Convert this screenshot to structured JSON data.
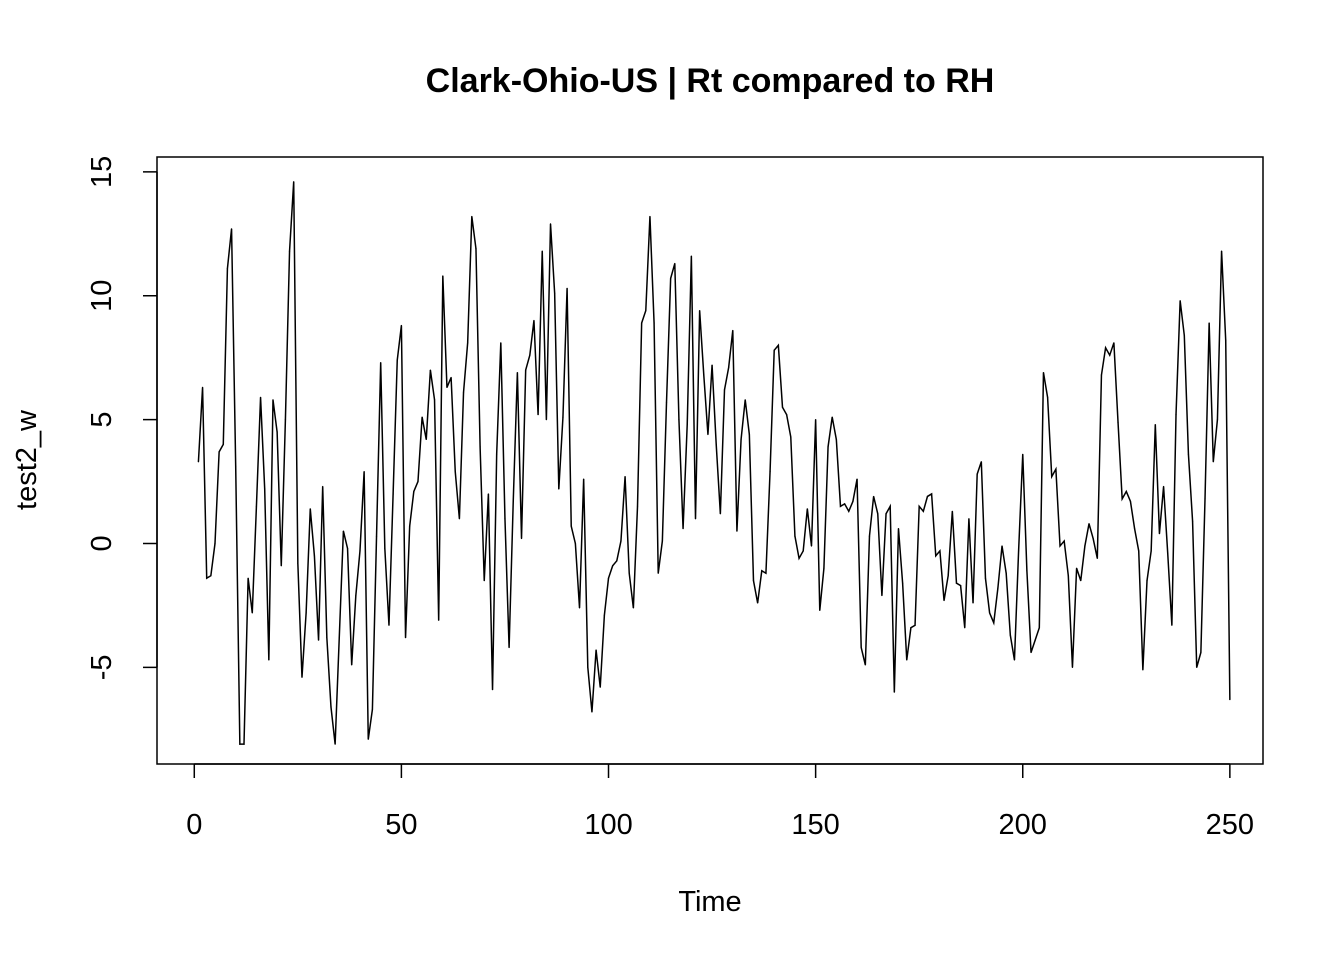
{
  "chart_data": {
    "type": "line",
    "title": "Clark-Ohio-US | Rt compared to RH",
    "xlabel": "Time",
    "ylabel": "test2_w",
    "xlim": [
      -9,
      258
    ],
    "ylim": [
      -8.9,
      15.6
    ],
    "x_ticks": [
      0,
      50,
      100,
      150,
      200,
      250
    ],
    "x_tick_labels": [
      "0",
      "50",
      "100",
      "150",
      "200",
      "250"
    ],
    "y_ticks": [
      -5,
      0,
      5,
      10,
      15
    ],
    "y_tick_labels": [
      "-5",
      "0",
      "5",
      "10",
      "15"
    ],
    "grid": false,
    "legend": "none",
    "line_color": "#000000",
    "series": [
      {
        "x_start": 1,
        "x_step": 1,
        "values": [
          3.3,
          6.3,
          -1.4,
          -1.3,
          0.0,
          3.7,
          4.0,
          11.1,
          12.7,
          3.1,
          -8.1,
          -8.1,
          -1.4,
          -2.8,
          1.5,
          5.9,
          2.2,
          -4.7,
          5.8,
          4.5,
          -0.9,
          5.0,
          11.8,
          14.6,
          -0.8,
          -5.4,
          -2.8,
          1.4,
          -0.5,
          -3.9,
          2.3,
          -3.8,
          -6.6,
          -8.1,
          -3.8,
          0.5,
          -0.2,
          -4.9,
          -2.1,
          -0.3,
          2.9,
          -7.9,
          -6.7,
          0.3,
          7.3,
          -0.2,
          -3.3,
          2.0,
          7.4,
          8.8,
          -3.8,
          0.7,
          2.1,
          2.5,
          5.1,
          4.2,
          7.0,
          5.8,
          -3.1,
          10.8,
          6.3,
          6.7,
          2.9,
          1.0,
          6.1,
          8.1,
          13.2,
          11.9,
          3.9,
          -1.5,
          2.0,
          -5.9,
          3.6,
          8.1,
          1.0,
          -4.2,
          1.7,
          6.9,
          0.2,
          7.0,
          7.6,
          9.0,
          5.2,
          11.8,
          5.0,
          12.9,
          10.1,
          2.2,
          5.1,
          10.3,
          0.7,
          0.0,
          -2.6,
          2.6,
          -5.0,
          -6.8,
          -4.3,
          -5.8,
          -2.9,
          -1.4,
          -0.9,
          -0.7,
          0.1,
          2.7,
          -1.2,
          -2.6,
          1.5,
          8.9,
          9.4,
          13.2,
          8.9,
          -1.2,
          0.1,
          5.7,
          10.7,
          11.3,
          5.0,
          0.6,
          4.8,
          11.6,
          1.0,
          9.4,
          6.8,
          4.4,
          7.2,
          4.0,
          1.2,
          6.2,
          7.1,
          8.6,
          0.5,
          4.2,
          5.8,
          4.4,
          -1.5,
          -2.4,
          -1.1,
          -1.2,
          2.9,
          7.8,
          8.0,
          5.5,
          5.2,
          4.3,
          0.3,
          -0.6,
          -0.3,
          1.4,
          -0.1,
          5.0,
          -2.7,
          -1.0,
          3.9,
          5.1,
          4.2,
          1.5,
          1.6,
          1.3,
          1.7,
          2.6,
          -4.2,
          -4.9,
          0.3,
          1.9,
          1.2,
          -2.1,
          1.2,
          1.5,
          -6.0,
          0.6,
          -1.6,
          -4.7,
          -3.4,
          -3.3,
          1.5,
          1.3,
          1.9,
          2.0,
          -0.5,
          -0.3,
          -2.3,
          -1.3,
          1.3,
          -1.6,
          -1.7,
          -3.4,
          1.0,
          -2.4,
          2.8,
          3.3,
          -1.4,
          -2.8,
          -3.2,
          -1.8,
          -0.1,
          -1.2,
          -3.7,
          -4.7,
          -0.3,
          3.6,
          -1.1,
          -4.4,
          -3.9,
          -3.4,
          6.9,
          5.9,
          2.7,
          3.0,
          -0.1,
          0.1,
          -1.3,
          -5.0,
          -1.0,
          -1.5,
          -0.1,
          0.8,
          0.2,
          -0.6,
          6.8,
          7.9,
          7.6,
          8.1,
          4.9,
          1.8,
          2.1,
          1.7,
          0.6,
          -0.3,
          -5.1,
          -1.5,
          -0.3,
          4.8,
          0.4,
          2.3,
          -0.4,
          -3.3,
          5.2,
          9.8,
          8.4,
          3.6,
          0.9,
          -5.0,
          -4.4,
          1.8,
          8.9,
          3.3,
          5.0,
          11.8,
          8.2,
          -6.3
        ]
      }
    ]
  }
}
